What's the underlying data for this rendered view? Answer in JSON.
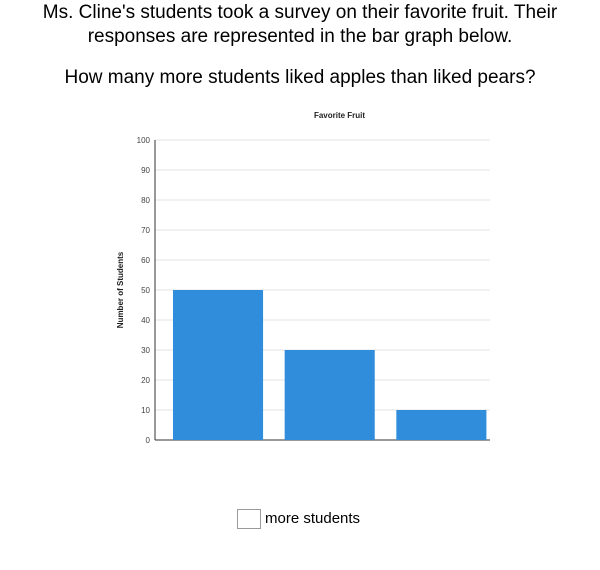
{
  "prompt": {
    "line1": "Ms. Cline's students took a survey on their favorite fruit. Their",
    "line2": "responses are represented in the bar graph below.",
    "question": "How many more students liked apples than liked pears?"
  },
  "chart_data": {
    "type": "bar",
    "title": "Favorite Fruit",
    "ylabel": "Number of Students",
    "xlabel": "",
    "categories": [
      "",
      "",
      ""
    ],
    "values": [
      50,
      30,
      10
    ],
    "ylim": [
      0,
      100
    ],
    "yticks": [
      0,
      10,
      20,
      30,
      40,
      50,
      60,
      70,
      80,
      90,
      100
    ],
    "grid": true,
    "bar_color": "#2f8ddb",
    "grid_color": "#e3e3e3"
  },
  "answer": {
    "value": "",
    "suffix": "more students"
  }
}
